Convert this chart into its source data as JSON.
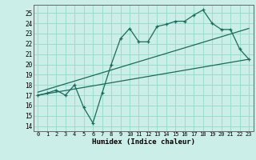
{
  "title": "",
  "xlabel": "Humidex (Indice chaleur)",
  "ylabel": "",
  "background_color": "#cceee8",
  "grid_color": "#99ddcc",
  "line_color": "#1a6b5a",
  "xlim": [
    -0.5,
    23.5
  ],
  "ylim": [
    13.5,
    25.8
  ],
  "xticks": [
    0,
    1,
    2,
    3,
    4,
    5,
    6,
    7,
    8,
    9,
    10,
    11,
    12,
    13,
    14,
    15,
    16,
    17,
    18,
    19,
    20,
    21,
    22,
    23
  ],
  "yticks": [
    14,
    15,
    16,
    17,
    18,
    19,
    20,
    21,
    22,
    23,
    24,
    25
  ],
  "line1_x": [
    0,
    1,
    2,
    3,
    4,
    5,
    6,
    7,
    8,
    9,
    10,
    11,
    12,
    13,
    14,
    15,
    16,
    17,
    18,
    19,
    20,
    21,
    22,
    23
  ],
  "line1_y": [
    17.0,
    17.2,
    17.5,
    17.0,
    18.0,
    15.8,
    14.3,
    17.2,
    20.0,
    22.5,
    23.5,
    22.2,
    22.2,
    23.7,
    23.9,
    24.2,
    24.2,
    24.8,
    25.3,
    24.0,
    23.4,
    23.4,
    21.5,
    20.5
  ],
  "line2_x": [
    0,
    23
  ],
  "line2_y": [
    17.0,
    20.5
  ],
  "line3_x": [
    0,
    23
  ],
  "line3_y": [
    17.3,
    23.5
  ]
}
